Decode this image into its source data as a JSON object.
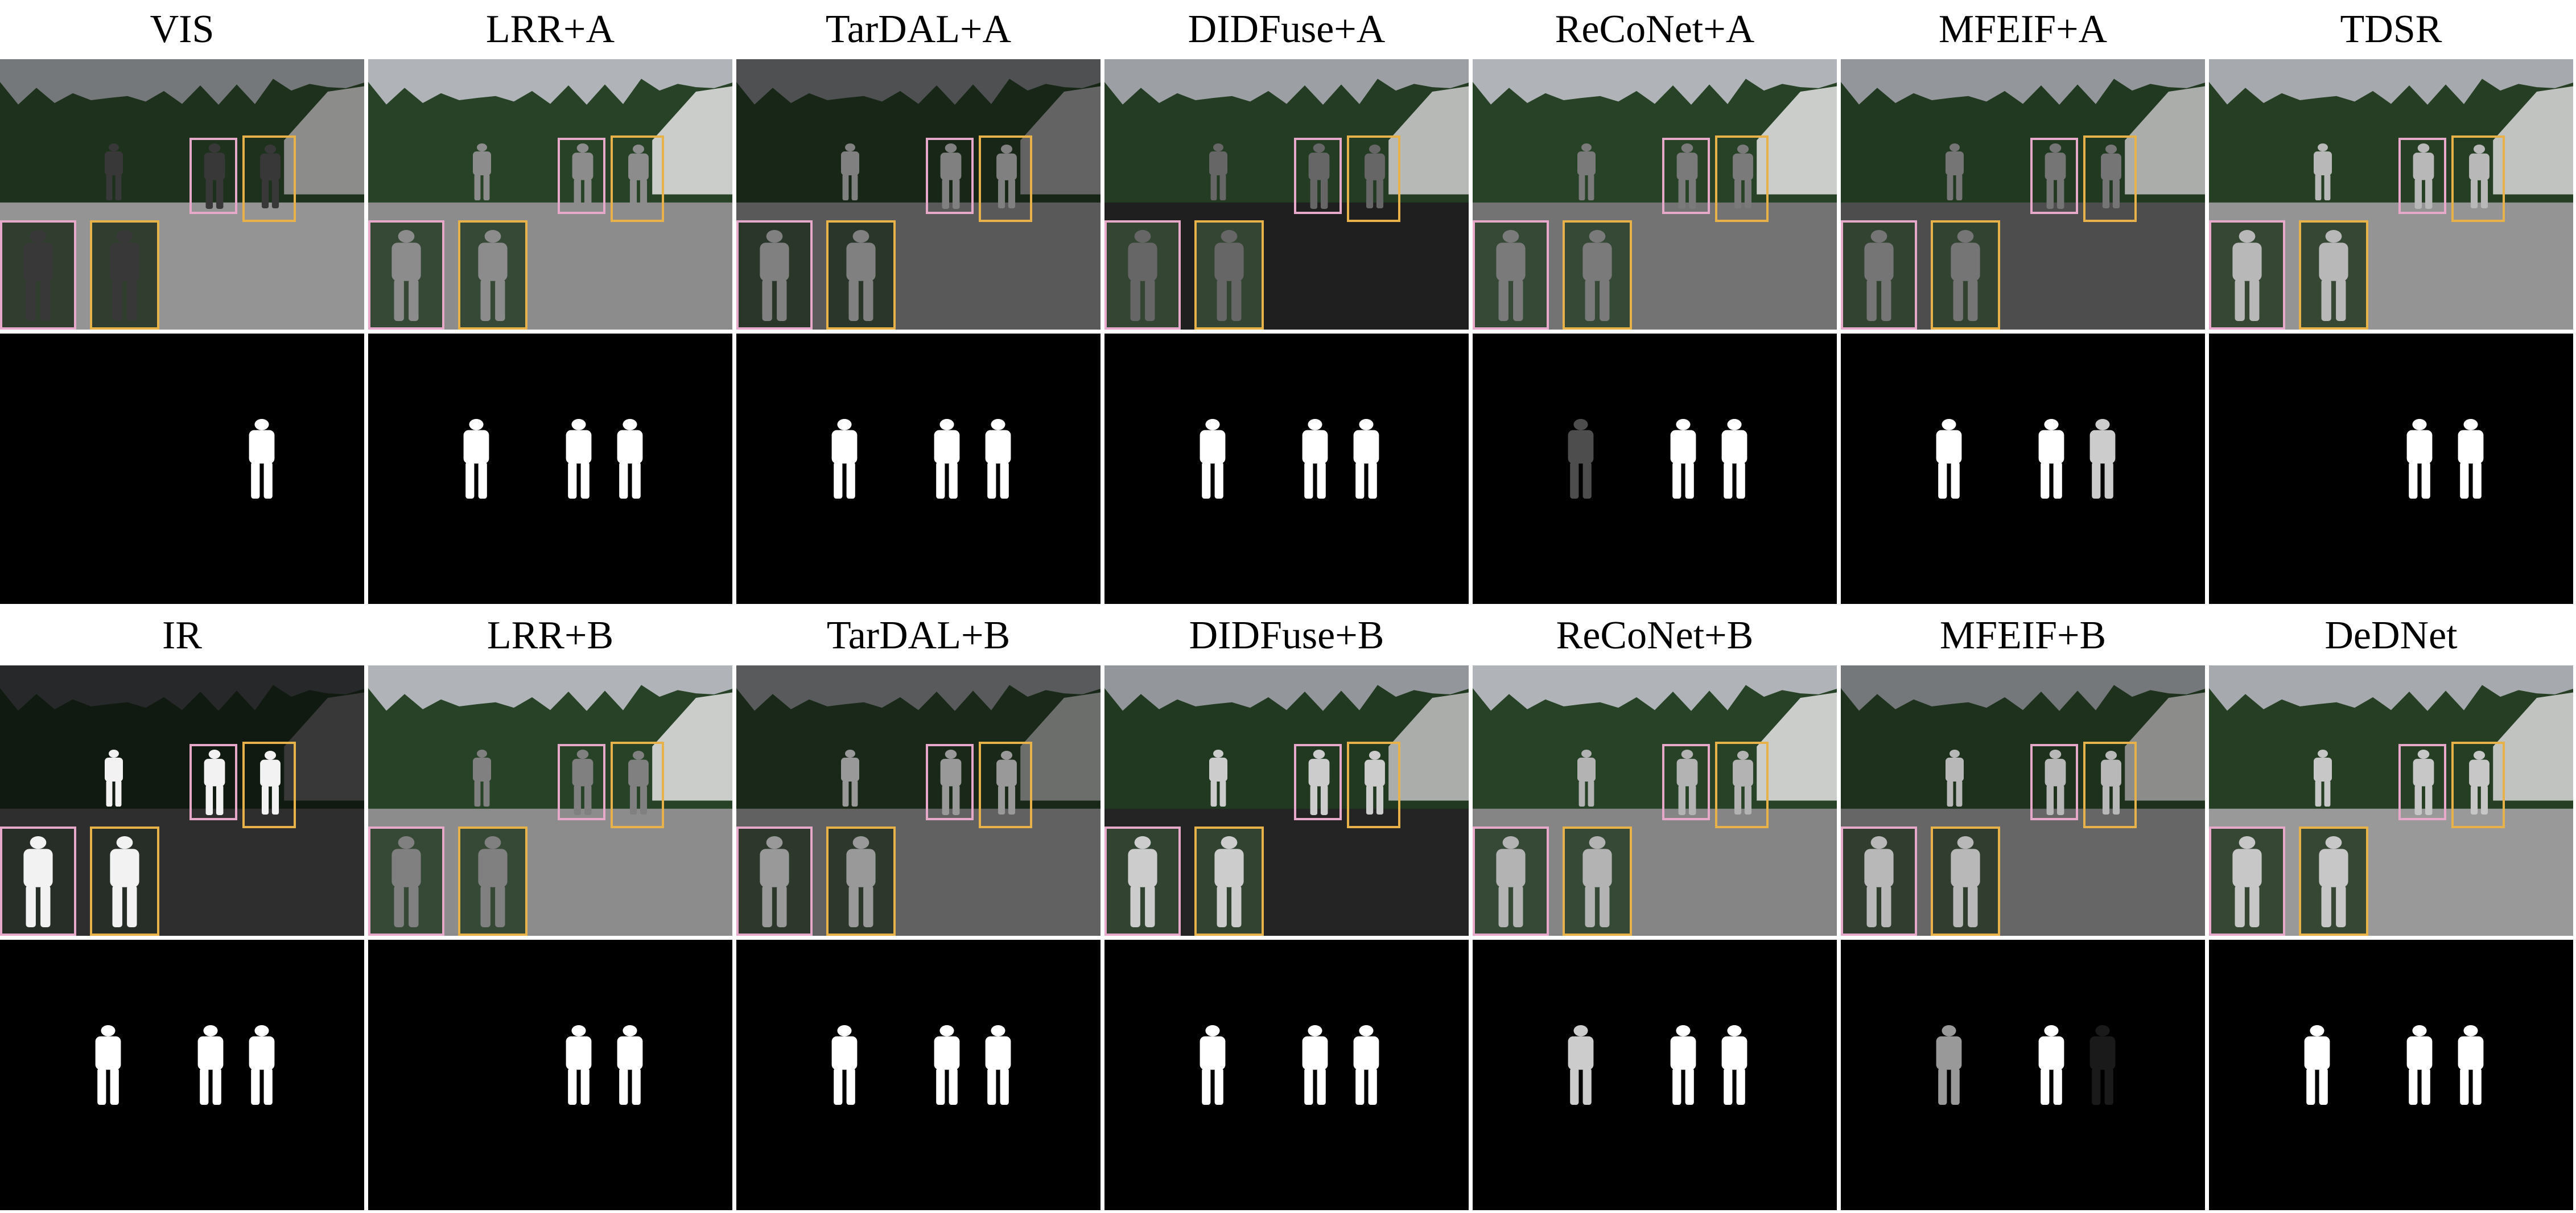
{
  "figure": {
    "rows": [
      {
        "titles": [
          "VIS",
          "LRR+A",
          "TarDAL+A",
          "DIDFuse+A",
          "ReCoNet+A",
          "MFEIF+A",
          "TDSR"
        ],
        "tone": [
          0.22,
          0.55,
          0.5,
          0.4,
          0.48,
          0.46,
          0.72
        ],
        "sky": [
          0.55,
          0.85,
          0.35,
          0.75,
          0.85,
          0.7,
          0.8
        ],
        "ground": [
          0.58,
          0.55,
          0.35,
          0.12,
          0.45,
          0.3,
          0.58
        ],
        "mask_people": [
          [
            0,
            0,
            1
          ],
          [
            1,
            1,
            1
          ],
          [
            1,
            1,
            1
          ],
          [
            1,
            1,
            1
          ],
          [
            0.3,
            1,
            1
          ],
          [
            1,
            1,
            0.8
          ],
          [
            0,
            1,
            1
          ]
        ]
      },
      {
        "titles": [
          "IR",
          "LRR+B",
          "TarDAL+B",
          "DIDFuse+B",
          "ReCoNet+B",
          "MFEIF+B",
          "DeDNet"
        ],
        "tone": [
          0.95,
          0.5,
          0.6,
          0.8,
          0.7,
          0.72,
          0.78
        ],
        "sky": [
          0.15,
          0.85,
          0.4,
          0.7,
          0.85,
          0.55,
          0.8
        ],
        "ground": [
          0.18,
          0.55,
          0.38,
          0.14,
          0.52,
          0.4,
          0.6
        ],
        "mask_people": [
          [
            1,
            1,
            1
          ],
          [
            0,
            1,
            1
          ],
          [
            1,
            1,
            1
          ],
          [
            1,
            1,
            1
          ],
          [
            0.8,
            1,
            1
          ],
          [
            0.6,
            1,
            0.1
          ],
          [
            1,
            1,
            1
          ]
        ]
      }
    ],
    "colors": {
      "background": "#ffffff",
      "foliage": "#2c4a2a",
      "pink_box": "#e6a9c9",
      "yellow_box": "#e7b24a",
      "mask_fg": "#ffffff",
      "mask_bg": "#000000"
    }
  }
}
